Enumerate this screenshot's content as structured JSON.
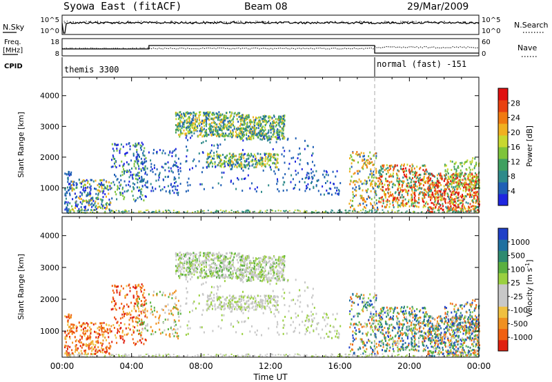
{
  "header": {
    "title": "Syowa East (fitACF)",
    "beam": "Beam 08",
    "date": "29/Mar/2009"
  },
  "noise_panel": {
    "left_label": "N.Sky",
    "right_label": "N.Search",
    "y_top_left": "10^5",
    "y_bottom_left": "10^0",
    "y_top_right": "10^5",
    "y_bottom_right": "10^0"
  },
  "freq_panel": {
    "left_label_1": "Freq.",
    "left_label_2": "[MHz]",
    "right_label": "Nave",
    "y_top_left": "18",
    "y_bottom_left": "8",
    "y_top_right": "60",
    "y_bottom_right": "0"
  },
  "cpid": {
    "label": "CPID",
    "mode1": "themis 3300",
    "mode2": "normal (fast) -151",
    "mode_change_hour": 18
  },
  "chart_data": [
    {
      "type": "heatmap",
      "name": "power",
      "ylabel": "Slant Range [km]",
      "ylim": [
        180,
        4600
      ],
      "y_ticks": [
        1000,
        2000,
        3000,
        4000
      ],
      "xlim": [
        0,
        24
      ],
      "colorbar_label": "Power [dB]",
      "colorbar_ticks": [
        "4",
        "8",
        "12",
        "16",
        "20",
        "24",
        "28"
      ],
      "colorbar_colors": [
        "#1f26e0",
        "#1f5fb5",
        "#2e8a8a",
        "#3fa060",
        "#7ec43a",
        "#c8d830",
        "#f0b020",
        "#f07a10",
        "#e84010",
        "#e01010"
      ],
      "regions": [
        {
          "t0": 6.8,
          "t1": 10.4,
          "r0": 2700,
          "r1": 3500,
          "level": "mixed_green"
        },
        {
          "t0": 8.2,
          "t1": 12.8,
          "r0": 2600,
          "r1": 3400,
          "level": "mixed_green"
        },
        {
          "t0": 8.5,
          "t1": 12.5,
          "r0": 1700,
          "r1": 2100,
          "level": "mixed_green"
        },
        {
          "t0": 17.3,
          "t1": 24,
          "r0": 300,
          "r1": 2200,
          "level": "strong"
        }
      ]
    },
    {
      "type": "heatmap",
      "name": "velocity",
      "ylabel": "Slant Range [km]",
      "ylim": [
        180,
        4600
      ],
      "y_ticks": [
        1000,
        2000,
        3000,
        4000
      ],
      "xlim": [
        0,
        24
      ],
      "xlabel": "Time UT",
      "x_ticks": [
        "00:00",
        "04:00",
        "08:00",
        "12:00",
        "16:00",
        "20:00",
        "00:00"
      ],
      "colorbar_label": "Velocity [m s",
      "colorbar_superscript": "-1",
      "colorbar_label_end": "]",
      "colorbar_ticks": [
        "1000",
        "500",
        "100",
        "25",
        "-25",
        "-100",
        "-500",
        "-1000"
      ],
      "colorbar_colors": [
        "#1f40c8",
        "#2070a0",
        "#2e8a70",
        "#5ab040",
        "#9ad040",
        "#c8c8c8",
        "#c8c8c8",
        "#f0c040",
        "#f09020",
        "#f06010",
        "#e02010"
      ]
    }
  ]
}
